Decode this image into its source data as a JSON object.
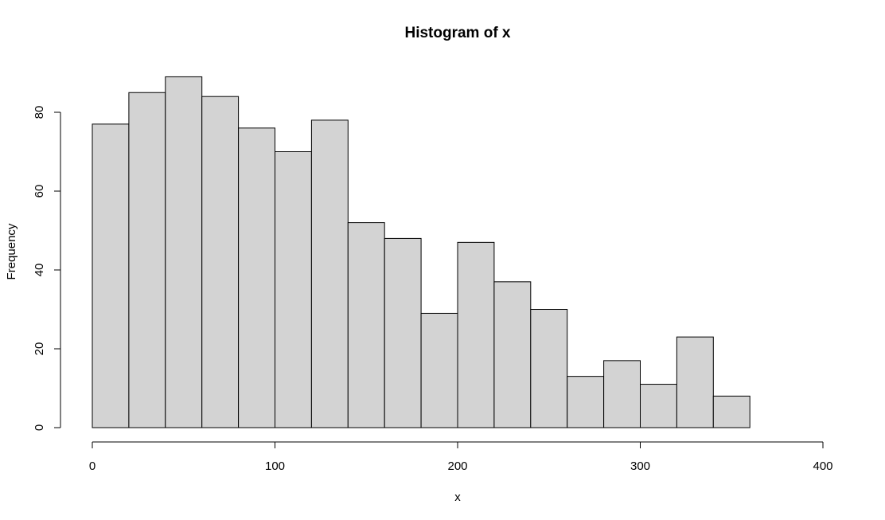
{
  "chart_data": {
    "type": "bar",
    "title": "Histogram of x",
    "xlabel": "x",
    "ylabel": "Frequency",
    "bin_edges": [
      0,
      20,
      40,
      60,
      80,
      100,
      120,
      140,
      160,
      180,
      200,
      220,
      240,
      260,
      280,
      300,
      320,
      340,
      360,
      380,
      400
    ],
    "values": [
      77,
      85,
      89,
      84,
      76,
      70,
      78,
      52,
      48,
      29,
      47,
      37,
      30,
      13,
      17,
      11,
      23,
      8,
      0,
      0
    ],
    "xlim": [
      0,
      400
    ],
    "ylim": [
      0,
      89
    ],
    "x_ticks": [
      0,
      100,
      200,
      300,
      400
    ],
    "y_ticks": [
      0,
      20,
      40,
      60,
      80
    ],
    "grid": false,
    "legend": "none",
    "colors": {
      "bar_fill": "#d3d3d3",
      "bar_stroke": "#000000"
    }
  }
}
